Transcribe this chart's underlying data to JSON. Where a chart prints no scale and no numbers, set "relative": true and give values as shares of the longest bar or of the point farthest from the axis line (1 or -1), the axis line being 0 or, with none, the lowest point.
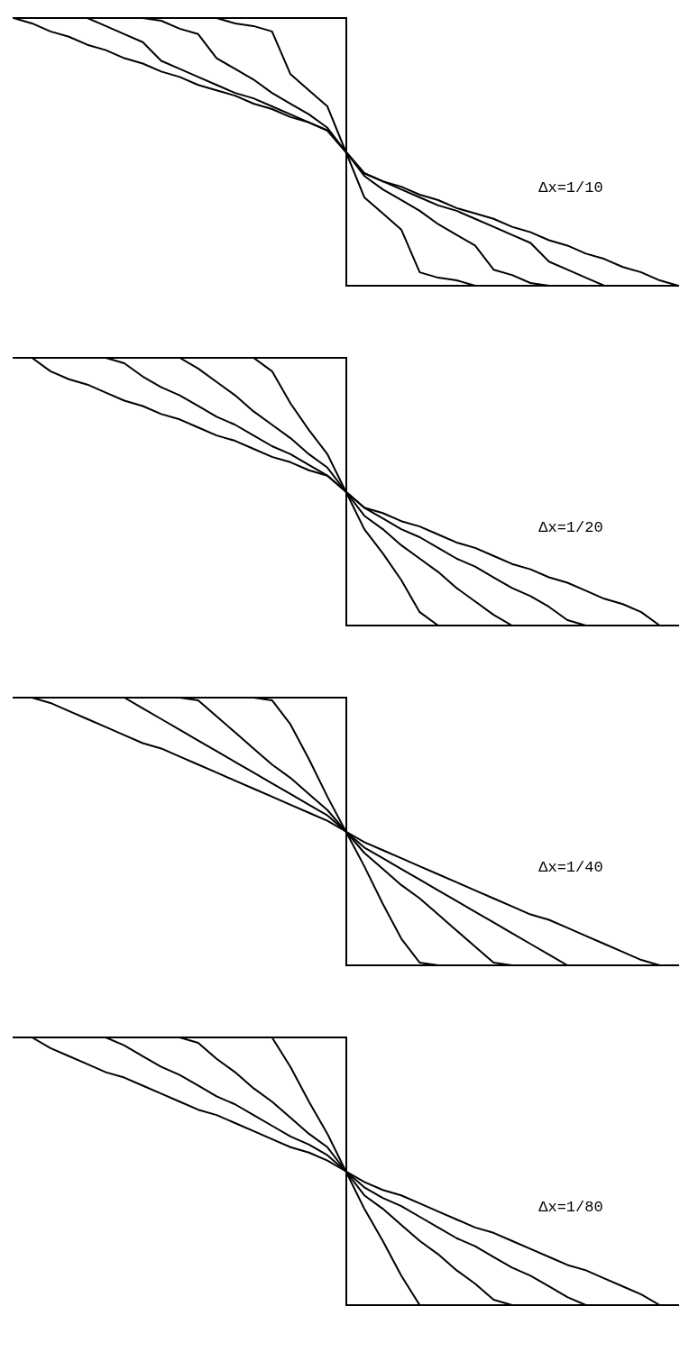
{
  "chart_data": [
    {
      "type": "line",
      "relative": true,
      "marker": "none",
      "annotations": [
        "Δx=1/10"
      ],
      "categories": [
        null,
        null,
        null,
        null,
        null,
        null,
        null,
        null,
        null,
        null,
        null,
        null,
        null,
        null,
        null,
        null,
        null,
        null,
        null,
        null,
        null,
        null,
        null,
        null,
        null,
        null,
        null,
        null,
        null,
        null,
        null,
        null,
        null,
        null,
        null,
        null,
        null
      ],
      "series": [
        {
          "color": "#000000",
          "values": [
            1,
            0.98,
            0.95,
            0.93,
            0.9,
            0.88,
            0.85,
            0.83,
            0.8,
            0.78,
            0.75,
            0.73,
            0.71,
            0.68,
            0.66,
            0.63,
            0.61,
            0.58,
            0.5,
            0.42,
            0.39,
            0.37,
            0.34,
            0.32,
            0.29,
            0.27,
            0.25,
            0.22,
            0.2,
            0.17,
            0.15,
            0.12,
            0.1,
            0.07,
            0.05,
            0.02,
            0
          ]
        },
        {
          "color": "#000000",
          "values": [
            null,
            null,
            null,
            null,
            1,
            0.97,
            0.94,
            0.91,
            0.84,
            0.81,
            0.78,
            0.75,
            0.72,
            0.7,
            0.67,
            0.64,
            0.61,
            0.58,
            0.5,
            0.42,
            0.39,
            0.36,
            0.33,
            0.3,
            0.28,
            0.25,
            0.22,
            0.19,
            0.16,
            0.09,
            0.06,
            0.03,
            0,
            null,
            null,
            null,
            null
          ]
        },
        {
          "color": "#000000",
          "values": [
            null,
            null,
            null,
            null,
            null,
            null,
            null,
            1,
            0.99,
            0.96,
            0.94,
            0.85,
            0.81,
            0.77,
            0.72,
            0.68,
            0.64,
            0.59,
            0.5,
            0.41,
            0.36,
            0.32,
            0.28,
            0.23,
            0.19,
            0.15,
            0.06,
            0.04,
            0.01,
            0,
            null,
            null,
            null,
            null,
            null,
            null,
            null
          ]
        },
        {
          "color": "#000000",
          "values": [
            null,
            null,
            null,
            null,
            null,
            null,
            null,
            null,
            null,
            null,
            null,
            1,
            0.98,
            0.97,
            0.95,
            0.79,
            0.73,
            0.67,
            0.5,
            0.33,
            0.27,
            0.21,
            0.05,
            0.03,
            0.02,
            0,
            null,
            null,
            null,
            null,
            null,
            null,
            null,
            null,
            null,
            null,
            null
          ]
        }
      ]
    },
    {
      "type": "line",
      "relative": true,
      "marker": "none",
      "annotations": [
        "Δx=1/20"
      ],
      "categories": [
        null,
        null,
        null,
        null,
        null,
        null,
        null,
        null,
        null,
        null,
        null,
        null,
        null,
        null,
        null,
        null,
        null,
        null,
        null,
        null,
        null,
        null,
        null,
        null,
        null,
        null,
        null,
        null,
        null,
        null,
        null,
        null,
        null,
        null,
        null,
        null,
        null
      ],
      "series": [
        {
          "color": "#000000",
          "values": [
            null,
            1,
            0.95,
            0.92,
            0.9,
            0.87,
            0.84,
            0.82,
            0.79,
            0.77,
            0.74,
            0.71,
            0.69,
            0.66,
            0.63,
            0.61,
            0.58,
            0.56,
            0.5,
            0.44,
            0.42,
            0.39,
            0.37,
            0.34,
            0.31,
            0.29,
            0.26,
            0.23,
            0.21,
            0.18,
            0.16,
            0.13,
            0.1,
            0.08,
            0.05,
            0,
            null
          ]
        },
        {
          "color": "#000000",
          "values": [
            null,
            null,
            null,
            null,
            null,
            1,
            0.98,
            0.93,
            0.89,
            0.86,
            0.82,
            0.78,
            0.75,
            0.71,
            0.67,
            0.64,
            0.6,
            0.56,
            0.5,
            0.44,
            0.4,
            0.36,
            0.33,
            0.29,
            0.25,
            0.22,
            0.18,
            0.14,
            0.11,
            0.07,
            0.02,
            0,
            null,
            null,
            null,
            null,
            null
          ]
        },
        {
          "color": "#000000",
          "values": [
            null,
            null,
            null,
            null,
            null,
            null,
            null,
            null,
            null,
            1,
            0.96,
            0.91,
            0.86,
            0.8,
            0.75,
            0.7,
            0.64,
            0.59,
            0.5,
            0.41,
            0.36,
            0.3,
            0.25,
            0.2,
            0.14,
            0.09,
            0.04,
            0,
            null,
            null,
            null,
            null,
            null,
            null,
            null,
            null,
            null
          ]
        },
        {
          "color": "#000000",
          "values": [
            null,
            null,
            null,
            null,
            null,
            null,
            null,
            null,
            null,
            null,
            null,
            null,
            null,
            1,
            0.95,
            0.83,
            0.73,
            0.64,
            0.5,
            0.36,
            0.27,
            0.17,
            0.05,
            0,
            null,
            null,
            null,
            null,
            null,
            null,
            null,
            null,
            null,
            null,
            null,
            null,
            null
          ]
        }
      ]
    },
    {
      "type": "line",
      "relative": true,
      "marker": "none",
      "annotations": [
        "Δx=1/40"
      ],
      "categories": [
        null,
        null,
        null,
        null,
        null,
        null,
        null,
        null,
        null,
        null,
        null,
        null,
        null,
        null,
        null,
        null,
        null,
        null,
        null,
        null,
        null,
        null,
        null,
        null,
        null,
        null,
        null,
        null,
        null,
        null,
        null,
        null,
        null,
        null,
        null,
        null,
        null
      ],
      "series": [
        {
          "color": "#000000",
          "values": [
            null,
            1,
            0.98,
            0.95,
            0.92,
            0.89,
            0.86,
            0.83,
            0.81,
            0.78,
            0.75,
            0.72,
            0.69,
            0.66,
            0.63,
            0.6,
            0.57,
            0.54,
            0.5,
            0.46,
            0.43,
            0.4,
            0.37,
            0.34,
            0.31,
            0.28,
            0.25,
            0.22,
            0.19,
            0.17,
            0.14,
            0.11,
            0.08,
            0.05,
            0.02,
            0,
            null
          ]
        },
        {
          "color": "#000000",
          "values": [
            null,
            null,
            null,
            null,
            null,
            null,
            1,
            0.96,
            0.92,
            0.88,
            0.84,
            0.8,
            0.76,
            0.72,
            0.68,
            0.64,
            0.6,
            0.56,
            0.5,
            0.44,
            0.4,
            0.36,
            0.32,
            0.28,
            0.24,
            0.2,
            0.16,
            0.12,
            0.08,
            0.04,
            0,
            null,
            null,
            null,
            null,
            null,
            null
          ]
        },
        {
          "color": "#000000",
          "values": [
            null,
            null,
            null,
            null,
            null,
            null,
            null,
            null,
            null,
            1,
            0.99,
            0.93,
            0.87,
            0.81,
            0.75,
            0.7,
            0.64,
            0.58,
            0.5,
            0.42,
            0.36,
            0.3,
            0.25,
            0.19,
            0.13,
            0.07,
            0.01,
            0,
            null,
            null,
            null,
            null,
            null,
            null,
            null,
            null,
            null
          ]
        },
        {
          "color": "#000000",
          "values": [
            null,
            null,
            null,
            null,
            null,
            null,
            null,
            null,
            null,
            null,
            null,
            null,
            null,
            1,
            0.99,
            0.9,
            0.77,
            0.63,
            0.5,
            0.37,
            0.23,
            0.1,
            0.01,
            0,
            null,
            null,
            null,
            null,
            null,
            null,
            null,
            null,
            null,
            null,
            null,
            null,
            null
          ]
        }
      ]
    },
    {
      "type": "line",
      "relative": true,
      "marker": "none",
      "annotations": [
        "Δx=1/80"
      ],
      "categories": [
        null,
        null,
        null,
        null,
        null,
        null,
        null,
        null,
        null,
        null,
        null,
        null,
        null,
        null,
        null,
        null,
        null,
        null,
        null,
        null,
        null,
        null,
        null,
        null,
        null,
        null,
        null,
        null,
        null,
        null,
        null,
        null,
        null,
        null,
        null,
        null,
        null
      ],
      "series": [
        {
          "color": "#000000",
          "values": [
            null,
            1,
            0.96,
            0.93,
            0.9,
            0.87,
            0.85,
            0.82,
            0.79,
            0.76,
            0.73,
            0.71,
            0.68,
            0.65,
            0.62,
            0.59,
            0.57,
            0.54,
            0.5,
            0.46,
            0.43,
            0.41,
            0.38,
            0.35,
            0.32,
            0.29,
            0.27,
            0.24,
            0.21,
            0.18,
            0.15,
            0.13,
            0.1,
            0.07,
            0.04,
            0,
            null
          ]
        },
        {
          "color": "#000000",
          "values": [
            null,
            null,
            null,
            null,
            null,
            1,
            0.97,
            0.93,
            0.89,
            0.86,
            0.82,
            0.78,
            0.75,
            0.71,
            0.67,
            0.63,
            0.6,
            0.56,
            0.5,
            0.44,
            0.4,
            0.37,
            0.33,
            0.29,
            0.25,
            0.22,
            0.18,
            0.14,
            0.11,
            0.07,
            0.03,
            0,
            null,
            null,
            null,
            null,
            null
          ]
        },
        {
          "color": "#000000",
          "values": [
            null,
            null,
            null,
            null,
            null,
            null,
            null,
            null,
            null,
            1,
            0.98,
            0.92,
            0.87,
            0.81,
            0.76,
            0.7,
            0.64,
            0.59,
            0.5,
            0.41,
            0.36,
            0.3,
            0.24,
            0.19,
            0.13,
            0.08,
            0.02,
            0,
            null,
            null,
            null,
            null,
            null,
            null,
            null,
            null,
            null
          ]
        },
        {
          "color": "#000000",
          "values": [
            null,
            null,
            null,
            null,
            null,
            null,
            null,
            null,
            null,
            null,
            null,
            null,
            null,
            null,
            1,
            0.89,
            0.76,
            0.64,
            0.5,
            0.36,
            0.24,
            0.11,
            0,
            null,
            null,
            null,
            null,
            null,
            null,
            null,
            null,
            null,
            null,
            null,
            null,
            null,
            null
          ]
        }
      ]
    }
  ]
}
